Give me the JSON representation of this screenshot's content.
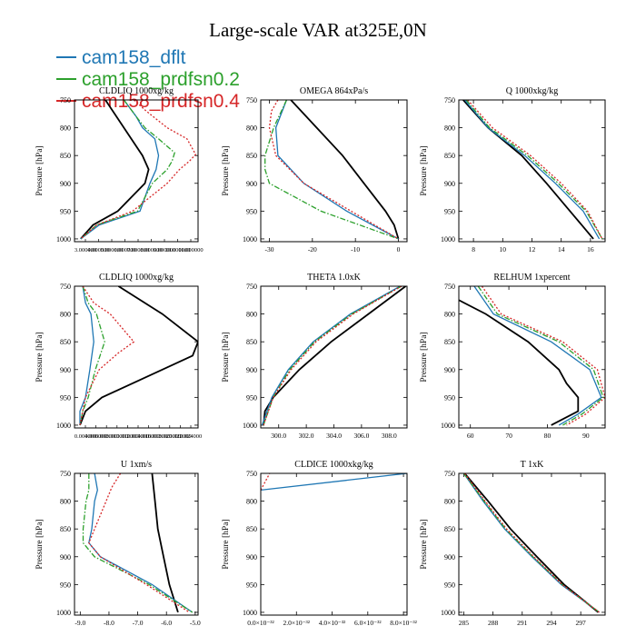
{
  "title": "Large-scale VAR at325E,0N",
  "legend": [
    {
      "name": "cam158_dflt",
      "color": "#1f77b4",
      "dash": "solid"
    },
    {
      "name": "cam158_prdfsn0.2",
      "color": "#2ca02c",
      "dash": "dashdot"
    },
    {
      "name": "cam158_prdfsn0.4",
      "color": "#d62728",
      "dash": "dotted"
    }
  ],
  "obs_color": "#000000",
  "chart_data": [
    {
      "type": "line",
      "title": "CLDLIQ  1000xg/kg",
      "ylabel": "Pressure [hPa]",
      "ylim": [
        1005,
        750
      ],
      "xlim": [
        2.5,
        12.5
      ],
      "yticks": [
        750,
        800,
        850,
        900,
        950,
        1000
      ],
      "xticks": [],
      "xtick_labels": [
        "3.000000",
        "4.000000",
        "5.000000",
        "6.000000",
        "7.000000",
        "8.000000",
        "9.000000",
        "10.000000",
        "11.000000"
      ],
      "xlabel_overlap": true,
      "series": [
        {
          "name": "obs",
          "y": [
            750,
            800,
            850,
            875,
            900,
            950,
            975,
            1000
          ],
          "x": [
            5.0,
            6.5,
            8.0,
            8.5,
            8.2,
            6.0,
            4.0,
            3.0
          ]
        },
        {
          "name": "cam158_dflt",
          "y": [
            750,
            780,
            800,
            820,
            850,
            875,
            900,
            950,
            975,
            1000
          ],
          "x": [
            6.5,
            7.5,
            8.0,
            9.0,
            9.3,
            9.1,
            8.6,
            7.8,
            4.5,
            3.0
          ]
        },
        {
          "name": "cam158_prdfsn0.2",
          "y": [
            750,
            780,
            800,
            820,
            845,
            860,
            875,
            900,
            950,
            975,
            1000
          ],
          "x": [
            6.5,
            7.5,
            8.2,
            9.3,
            10.6,
            10.4,
            10.0,
            8.8,
            7.6,
            4.3,
            3.0
          ]
        },
        {
          "name": "cam158_prdfsn0.4",
          "y": [
            750,
            770,
            800,
            820,
            848,
            860,
            875,
            900,
            950,
            975,
            1000
          ],
          "x": [
            7.3,
            8.3,
            10.0,
            11.6,
            12.3,
            11.8,
            11.0,
            10.0,
            7.2,
            4.3,
            3.0
          ]
        }
      ]
    },
    {
      "type": "line",
      "title": "OMEGA  864xPa/s",
      "ylabel": "Pressure [hPa]",
      "ylim": [
        1005,
        750
      ],
      "xlim": [
        -32,
        2
      ],
      "yticks": [
        750,
        800,
        850,
        900,
        950,
        1000
      ],
      "xticks": [
        -30,
        -20,
        -10,
        0
      ],
      "xtick_labels": [
        "-30",
        "-20",
        "-10",
        "0"
      ],
      "series": [
        {
          "name": "obs",
          "y": [
            750,
            800,
            850,
            900,
            950,
            975,
            1000
          ],
          "x": [
            -25,
            -19,
            -13,
            -8,
            -3,
            -1,
            0
          ]
        },
        {
          "name": "cam158_dflt",
          "y": [
            750,
            800,
            850,
            900,
            950,
            1000
          ],
          "x": [
            -26,
            -28.5,
            -28,
            -22,
            -12,
            0
          ]
        },
        {
          "name": "cam158_prdfsn0.2",
          "y": [
            750,
            800,
            850,
            875,
            900,
            950,
            1000
          ],
          "x": [
            -26,
            -29,
            -31,
            -31,
            -30,
            -18,
            0
          ]
        },
        {
          "name": "cam158_prdfsn0.4",
          "y": [
            750,
            770,
            800,
            850,
            900,
            950,
            1000
          ],
          "x": [
            -28,
            -29.5,
            -30,
            -28.5,
            -22,
            -11,
            0
          ]
        }
      ]
    },
    {
      "type": "line",
      "title": "Q  1000xkg/kg",
      "ylabel": "Pressure [hPa]",
      "ylim": [
        1005,
        750
      ],
      "xlim": [
        7,
        17
      ],
      "yticks": [
        750,
        800,
        850,
        900,
        950,
        1000
      ],
      "xticks": [
        8,
        10,
        12,
        14,
        16
      ],
      "xtick_labels": [
        "8",
        "10",
        "12",
        "14",
        "16"
      ],
      "series": [
        {
          "name": "obs",
          "y": [
            750,
            800,
            850,
            900,
            950,
            975,
            1000
          ],
          "x": [
            7.3,
            9.0,
            11.3,
            13.0,
            14.6,
            15.4,
            16.2
          ]
        },
        {
          "name": "cam158_dflt",
          "y": [
            750,
            800,
            850,
            900,
            950,
            1000
          ],
          "x": [
            7.4,
            9.0,
            11.5,
            13.6,
            15.5,
            16.6
          ]
        },
        {
          "name": "cam158_prdfsn0.2",
          "y": [
            750,
            800,
            850,
            900,
            950,
            1000
          ],
          "x": [
            7.5,
            9.1,
            11.7,
            13.8,
            15.7,
            16.8
          ]
        },
        {
          "name": "cam158_prdfsn0.4",
          "y": [
            750,
            800,
            850,
            900,
            950,
            1000
          ],
          "x": [
            7.6,
            9.3,
            11.9,
            14.0,
            15.8,
            16.8
          ]
        }
      ]
    },
    {
      "type": "line",
      "title": "CLDLIQ  1000xg/kg",
      "ylabel": "Pressure [hPa]",
      "ylim": [
        1005,
        750
      ],
      "xlim": [
        0.002,
        0.0245
      ],
      "yticks": [
        750,
        800,
        850,
        900,
        950,
        1000
      ],
      "xticks": [],
      "xtick_labels": [
        "0.004000",
        "0.006000",
        "0.008000",
        "0.010000",
        "0.012000",
        "0.014000",
        "0.016000",
        "0.018000",
        "0.020000",
        "0.022000",
        "0.024000"
      ],
      "xlabel_overlap": true,
      "series": [
        {
          "name": "obs",
          "y": [
            750,
            800,
            850,
            875,
            900,
            950,
            975,
            1000
          ],
          "x": [
            0.01,
            0.018,
            0.0245,
            0.0235,
            0.018,
            0.007,
            0.004,
            0.003
          ]
        },
        {
          "name": "cam158_dflt",
          "y": [
            750,
            780,
            800,
            850,
            900,
            950,
            975,
            1000
          ],
          "x": [
            0.0035,
            0.004,
            0.005,
            0.0055,
            0.0048,
            0.004,
            0.003,
            0.003
          ]
        },
        {
          "name": "cam158_prdfsn0.2",
          "y": [
            750,
            780,
            800,
            850,
            900,
            950,
            975,
            1000
          ],
          "x": [
            0.0035,
            0.0045,
            0.006,
            0.0075,
            0.0058,
            0.0045,
            0.0035,
            0.003
          ]
        },
        {
          "name": "cam158_prdfsn0.4",
          "y": [
            750,
            780,
            800,
            850,
            870,
            900,
            950,
            1000
          ],
          "x": [
            0.0035,
            0.0055,
            0.0085,
            0.0128,
            0.01,
            0.0065,
            0.004,
            0.003
          ]
        }
      ]
    },
    {
      "type": "line",
      "title": "THETA  1.0xK",
      "ylabel": "Pressure [hPa]",
      "ylim": [
        1005,
        750
      ],
      "xlim": [
        298.7,
        309.3
      ],
      "yticks": [
        750,
        800,
        850,
        900,
        950,
        1000
      ],
      "xticks": [
        300,
        302,
        304,
        306,
        308
      ],
      "xtick_labels": [
        "300.0",
        "302.0",
        "304.0",
        "306.0",
        "308.0"
      ],
      "series": [
        {
          "name": "obs",
          "y": [
            750,
            800,
            850,
            900,
            950,
            975,
            1000
          ],
          "x": [
            309.2,
            306.5,
            303.8,
            301.5,
            299.6,
            299.0,
            298.9
          ]
        },
        {
          "name": "cam158_dflt",
          "y": [
            750,
            800,
            850,
            900,
            950,
            1000
          ],
          "x": [
            308.8,
            305.2,
            302.5,
            300.7,
            299.5,
            298.8
          ]
        },
        {
          "name": "cam158_prdfsn0.2",
          "y": [
            750,
            800,
            850,
            900,
            950,
            1000
          ],
          "x": [
            308.9,
            305.3,
            302.6,
            300.8,
            299.6,
            298.9
          ]
        },
        {
          "name": "cam158_prdfsn0.4",
          "y": [
            750,
            800,
            850,
            900,
            950,
            1000
          ],
          "x": [
            308.9,
            305.4,
            302.7,
            300.9,
            299.6,
            298.9
          ]
        }
      ]
    },
    {
      "type": "line",
      "title": "RELHUM  1xpercent",
      "ylabel": "Pressure [hPa]",
      "ylim": [
        1005,
        750
      ],
      "xlim": [
        57,
        95
      ],
      "yticks": [
        750,
        800,
        850,
        900,
        950,
        1000
      ],
      "xticks": [
        60,
        70,
        80,
        90
      ],
      "xtick_labels": [
        "60",
        "70",
        "80",
        "90"
      ],
      "series": [
        {
          "name": "obs",
          "y": [
            775,
            800,
            850,
            900,
            925,
            950,
            975,
            1000
          ],
          "x": [
            57,
            64,
            75,
            83,
            85,
            88,
            88,
            81
          ]
        },
        {
          "name": "cam158_dflt",
          "y": [
            750,
            800,
            850,
            900,
            950,
            980,
            1000
          ],
          "x": [
            61,
            66,
            81,
            91,
            94,
            88,
            83
          ]
        },
        {
          "name": "cam158_prdfsn0.2",
          "y": [
            750,
            800,
            850,
            900,
            950,
            980,
            1000
          ],
          "x": [
            62,
            67,
            83,
            92,
            94.5,
            89,
            84
          ]
        },
        {
          "name": "cam158_prdfsn0.4",
          "y": [
            750,
            800,
            850,
            900,
            950,
            980,
            1000
          ],
          "x": [
            63,
            68,
            84,
            93,
            95,
            90,
            85
          ]
        }
      ]
    },
    {
      "type": "line",
      "title": "U  1xm/s",
      "ylabel": "Pressure [hPa]",
      "ylim": [
        1005,
        750
      ],
      "xlim": [
        -9.2,
        -4.9
      ],
      "yticks": [
        750,
        800,
        850,
        900,
        950,
        1000
      ],
      "xticks": [
        -9,
        -8,
        -7,
        -6,
        -5
      ],
      "xtick_labels": [
        "-9.0",
        "-8.0",
        "-7.0",
        "-6.0",
        "-5.0"
      ],
      "series": [
        {
          "name": "obs",
          "y": [
            750,
            800,
            850,
            900,
            950,
            1000
          ],
          "x": [
            -6.5,
            -6.4,
            -6.3,
            -6.1,
            -5.9,
            -5.6
          ]
        },
        {
          "name": "cam158_dflt",
          "y": [
            750,
            780,
            800,
            850,
            875,
            900,
            950,
            1000
          ],
          "x": [
            -8.5,
            -8.4,
            -8.5,
            -8.6,
            -8.7,
            -8.3,
            -6.5,
            -5.1
          ]
        },
        {
          "name": "cam158_prdfsn0.2",
          "y": [
            750,
            780,
            800,
            850,
            875,
            900,
            950,
            1000
          ],
          "x": [
            -8.7,
            -8.7,
            -8.8,
            -8.9,
            -8.9,
            -8.5,
            -6.6,
            -5.1
          ]
        },
        {
          "name": "cam158_prdfsn0.4",
          "y": [
            750,
            775,
            800,
            850,
            875,
            900,
            950,
            1000
          ],
          "x": [
            -7.6,
            -7.9,
            -8.1,
            -8.5,
            -8.7,
            -8.3,
            -6.7,
            -5.2
          ]
        }
      ]
    },
    {
      "type": "line",
      "title": "CLDICE  1000xkg/kg",
      "ylabel": "Pressure [hPa]",
      "ylim": [
        1005,
        750
      ],
      "xlim": [
        0,
        8.2e-32
      ],
      "yticks": [
        750,
        800,
        850,
        900,
        950,
        1000
      ],
      "xticks": [
        0,
        2e-32,
        4e-32,
        6e-32,
        8e-32
      ],
      "xtick_labels": [
        "0.0×10⁻³²",
        "2.0×10⁻³²",
        "4.0×10⁻³²",
        "6.0×10⁻³²",
        "8.0×10⁻³²"
      ],
      "series": [
        {
          "name": "cam158_dflt",
          "y": [
            780,
            750
          ],
          "x": [
            0,
            8.2e-32
          ]
        },
        {
          "name": "cam158_prdfsn0.4",
          "y": [
            780,
            750
          ],
          "x": [
            0,
            5e-33
          ]
        }
      ]
    },
    {
      "type": "line",
      "title": "T  1xK",
      "ylabel": "Pressure [hPa]",
      "ylim": [
        1005,
        750
      ],
      "xlim": [
        284.5,
        299.5
      ],
      "yticks": [
        750,
        800,
        850,
        900,
        950,
        1000
      ],
      "xticks": [
        285,
        288,
        291,
        294,
        297
      ],
      "xtick_labels": [
        "285",
        "288",
        "291",
        "294",
        "297"
      ],
      "series": [
        {
          "name": "obs",
          "y": [
            750,
            800,
            850,
            900,
            950,
            1000
          ],
          "x": [
            285.1,
            287.5,
            289.8,
            292.5,
            295.3,
            298.8
          ]
        },
        {
          "name": "cam158_dflt",
          "y": [
            750,
            800,
            850,
            900,
            950,
            1000
          ],
          "x": [
            285.0,
            287.0,
            289.2,
            292.0,
            295.0,
            298.9
          ]
        },
        {
          "name": "cam158_prdfsn0.2",
          "y": [
            750,
            800,
            850,
            900,
            950,
            1000
          ],
          "x": [
            285.0,
            287.1,
            289.3,
            292.1,
            295.1,
            298.9
          ]
        },
        {
          "name": "cam158_prdfsn0.4",
          "y": [
            750,
            800,
            850,
            900,
            950,
            1000
          ],
          "x": [
            285.1,
            287.2,
            289.4,
            292.2,
            295.1,
            298.9
          ]
        }
      ]
    }
  ]
}
